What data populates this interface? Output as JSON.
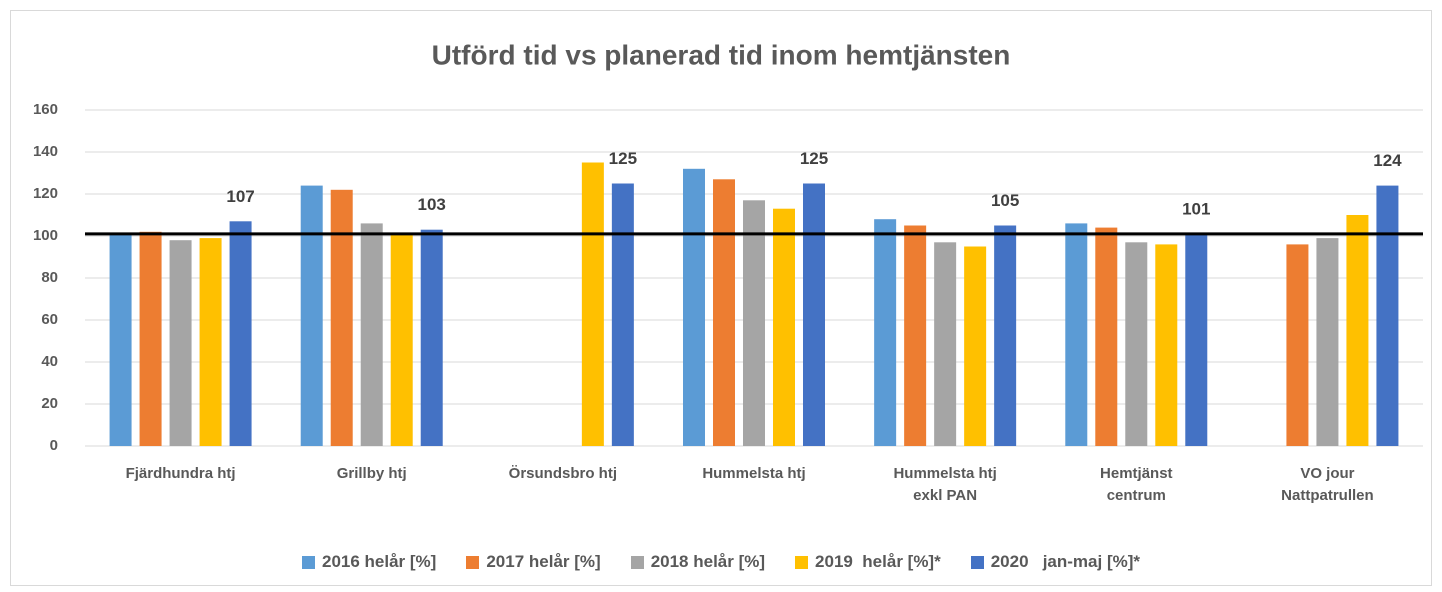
{
  "chart_data": {
    "type": "bar",
    "title": "Utförd tid vs planerad tid inom hemtjänsten",
    "categories": [
      "Fjärdhundra htj",
      "Grillby htj",
      "Örsundsbro htj",
      "Hummelsta htj",
      "Hummelsta htj\nexkl PAN",
      "Hemtjänst\ncentrum",
      "VO jour\nNattpatrullen"
    ],
    "series": [
      {
        "name": "2016 helår [%]",
        "color": "#5b9bd5",
        "values": [
          101,
          124,
          null,
          132,
          108,
          106,
          null
        ]
      },
      {
        "name": "2017 helår [%]",
        "color": "#ed7d31",
        "values": [
          102,
          122,
          null,
          127,
          105,
          104,
          96
        ]
      },
      {
        "name": "2018 helår [%]",
        "color": "#a5a5a5",
        "values": [
          98,
          106,
          null,
          117,
          97,
          97,
          99
        ]
      },
      {
        "name": "2019  helår [%]*",
        "color": "#ffc000",
        "values": [
          99,
          101,
          135,
          113,
          95,
          96,
          110
        ]
      },
      {
        "name": "2020   jan-maj [%]*",
        "color": "#4472c4",
        "values": [
          107,
          103,
          125,
          125,
          105,
          101,
          124
        ],
        "data_labels": true
      }
    ],
    "reference_line": 101,
    "ylim": [
      0,
      160
    ],
    "yticks": [
      0,
      20,
      40,
      60,
      80,
      100,
      120,
      140,
      160
    ],
    "grid": true,
    "legend": "bottom"
  }
}
